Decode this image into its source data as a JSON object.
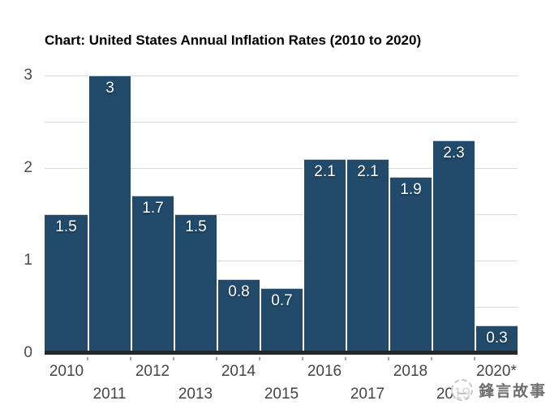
{
  "title": "Chart: United States Annual Inflation Rates (2010 to 2020)",
  "chart_data": {
    "type": "bar",
    "title": "Chart: United States Annual Inflation Rates (2010 to 2020)",
    "categories": [
      "2010",
      "2011",
      "2012",
      "2013",
      "2014",
      "2015",
      "2016",
      "2017",
      "2018",
      "2019",
      "2020*"
    ],
    "values": [
      1.5,
      3,
      1.7,
      1.5,
      0.8,
      0.7,
      2.1,
      2.1,
      1.9,
      2.3,
      0.3
    ],
    "value_labels": [
      "1.5",
      "3",
      "1.7",
      "1.5",
      "0.8",
      "0.7",
      "2.1",
      "2.1",
      "1.9",
      "2.3",
      "0.3"
    ],
    "xlabel": "",
    "ylabel": "",
    "ylim": [
      0,
      3
    ],
    "yticks": [
      "0",
      "1",
      "2",
      "3"
    ],
    "gridline_step": 0.5,
    "grid": true,
    "legend": false,
    "x_labels_staggered": true
  },
  "watermark": {
    "icon": "circular-logo-icon",
    "text": "鋒言故事"
  },
  "colors": {
    "bar": "#214a6b",
    "gridline": "#d9d9d9",
    "axis_line": "#24292d",
    "tick_label": "#454545",
    "value_label": "#ffffff",
    "background": "#ffffff",
    "watermark_text": "#6f6f6f"
  }
}
